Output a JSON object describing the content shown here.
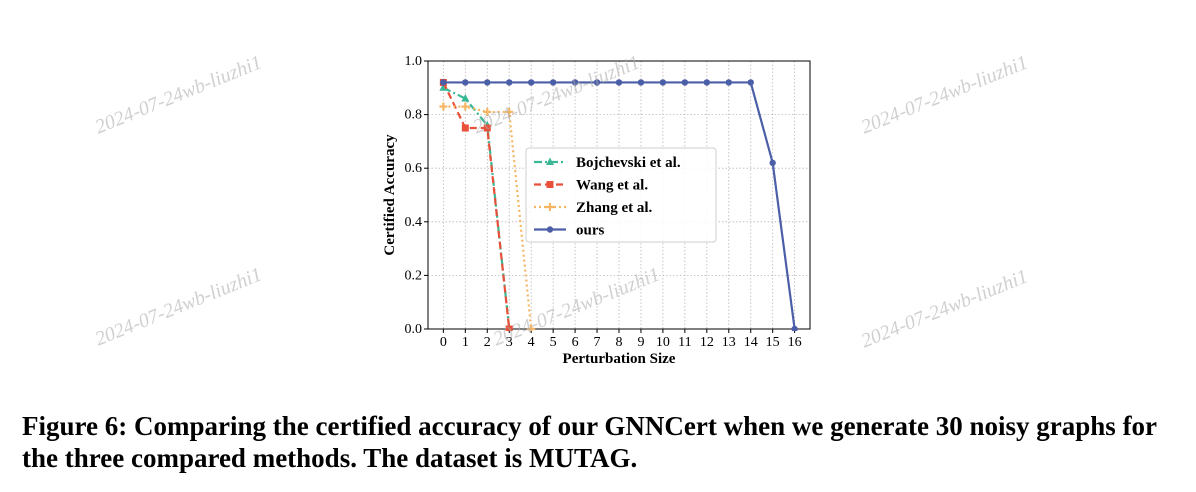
{
  "watermark_text": "2024-07-24wb-liuzhi1",
  "caption": "Figure 6: Comparing the certified accuracy of our GNNCert when we generate 30 noisy graphs for the three compared methods. The dataset is MUTAG.",
  "chart_data": {
    "type": "line",
    "title": "",
    "xlabel": "Perturbation Size",
    "ylabel": "Certified Accuracy",
    "xlim": [
      0,
      16
    ],
    "ylim": [
      0.0,
      1.0
    ],
    "xticks": [
      0,
      1,
      2,
      3,
      4,
      5,
      6,
      7,
      8,
      9,
      10,
      11,
      12,
      13,
      14,
      15,
      16
    ],
    "yticks": [
      0.0,
      0.2,
      0.4,
      0.6,
      0.8,
      1.0
    ],
    "grid": true,
    "legend_position": "center-right",
    "series": [
      {
        "name": "Bojchevski et al.",
        "color": "#3ab795",
        "linestyle": "dashdot",
        "marker": "triangle",
        "x": [
          0,
          1,
          2,
          3
        ],
        "y": [
          0.9,
          0.86,
          0.76,
          0.0
        ]
      },
      {
        "name": "Wang et al.",
        "color": "#e8503a",
        "linestyle": "dashed",
        "marker": "square",
        "x": [
          0,
          1,
          2,
          3
        ],
        "y": [
          0.92,
          0.75,
          0.75,
          0.0
        ]
      },
      {
        "name": "Zhang et al.",
        "color": "#f5b563",
        "linestyle": "dotted",
        "marker": "plus",
        "x": [
          0,
          1,
          2,
          3,
          4
        ],
        "y": [
          0.83,
          0.83,
          0.81,
          0.81,
          0.0
        ]
      },
      {
        "name": "ours",
        "color": "#4b5fa8",
        "linestyle": "solid",
        "marker": "circle",
        "x": [
          0,
          1,
          2,
          3,
          4,
          5,
          6,
          7,
          8,
          9,
          10,
          11,
          12,
          13,
          14,
          15,
          16
        ],
        "y": [
          0.92,
          0.92,
          0.92,
          0.92,
          0.92,
          0.92,
          0.92,
          0.92,
          0.92,
          0.92,
          0.92,
          0.92,
          0.92,
          0.92,
          0.92,
          0.62,
          0.0
        ]
      }
    ]
  }
}
